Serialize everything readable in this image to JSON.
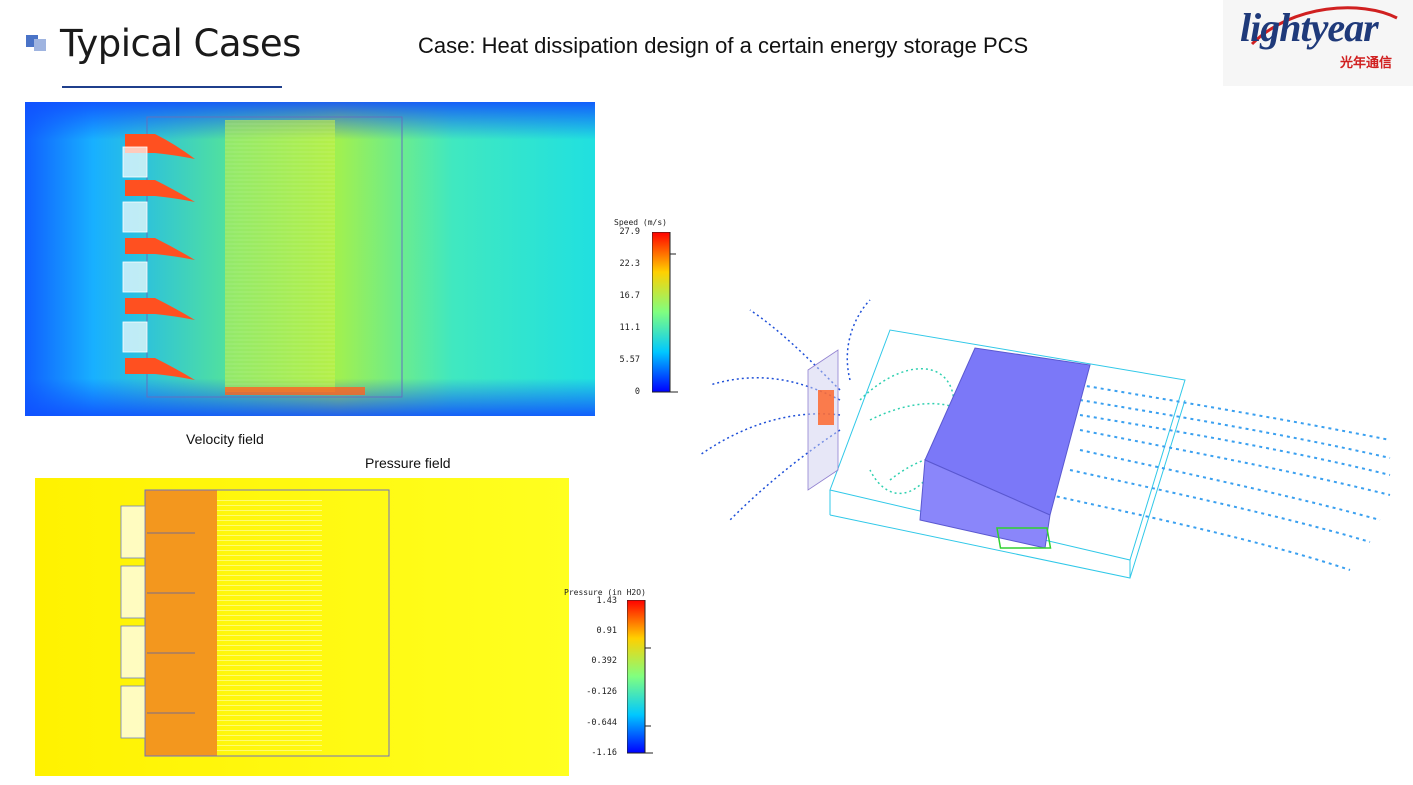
{
  "header": {
    "title": "Typical Cases",
    "subtitle": "Case: Heat dissipation design of a certain energy storage PCS"
  },
  "logo": {
    "brand": "lightyear",
    "brand_sub": "光年通信",
    "color": "#1f3a7a",
    "accent": "#d02020"
  },
  "velocity_panel": {
    "caption": "Velocity field",
    "legend": {
      "title": "Speed (m/s)",
      "ticks": [
        "27.9",
        "22.3",
        "16.7",
        "11.1",
        "5.57",
        "0"
      ]
    }
  },
  "pressure_panel": {
    "caption": "Pressure field",
    "legend": {
      "title": "Pressure (in H2O)",
      "ticks": [
        "1.43",
        "0.91",
        "0.392",
        "-0.126",
        "-0.644",
        "-1.16"
      ]
    }
  },
  "streamline_panel": {
    "description_icon": "streamline-3d-icon"
  },
  "colors": {
    "title_rule": "#1f3f8c",
    "jet_low": "#0000ff",
    "jet_high": "#ff0000",
    "pressure_bg": "#ffff00"
  }
}
